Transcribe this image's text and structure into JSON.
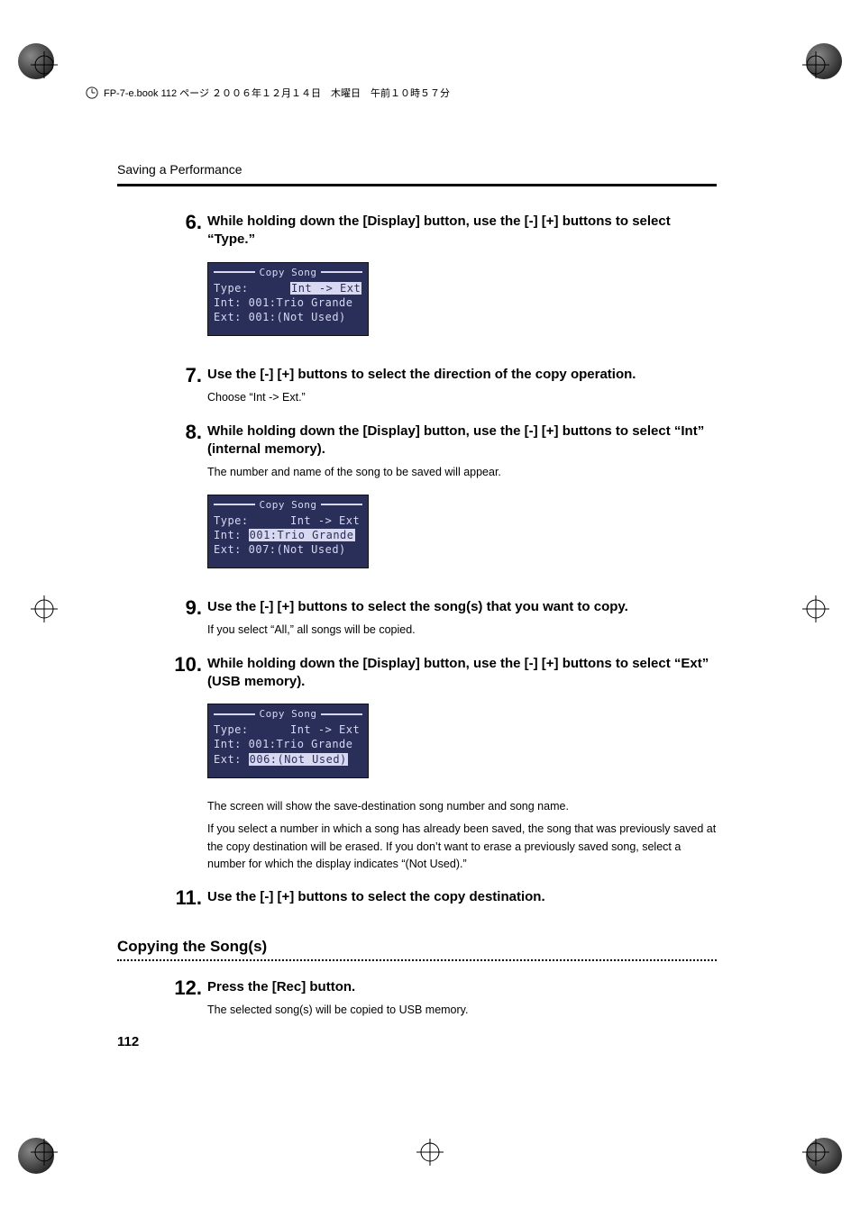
{
  "header": {
    "text": "FP-7-e.book  112 ページ  ２００６年１２月１４日　木曜日　午前１０時５７分"
  },
  "running_head": "Saving a Performance",
  "page_number": "112",
  "lcd_colors": {
    "bg": "#2a2f5a",
    "fg": "#d8d8f0"
  },
  "steps": [
    {
      "num": "6.",
      "head": "While holding down the [Display] button, use the [-] [+] buttons to select “Type.”",
      "lcd": {
        "title": "Copy Song",
        "rows": [
          {
            "left": "Type:",
            "right": "Int -> Ext",
            "sel": "right"
          },
          {
            "left": "Int: 001:Trio Grande",
            "sel": "none"
          },
          {
            "left": "Ext: 001:(Not Used)",
            "sel": "none"
          }
        ]
      }
    },
    {
      "num": "7.",
      "head": "Use the [-] [+] buttons to select the direction of the copy operation.",
      "text": [
        "Choose “Int -> Ext.”"
      ]
    },
    {
      "num": "8.",
      "head": "While holding down the [Display] button, use the [-] [+] buttons to select “Int” (internal memory).",
      "text": [
        "The number and name of the song to be saved will appear."
      ],
      "lcd": {
        "title": "Copy Song",
        "rows": [
          {
            "left": "Type:",
            "right": "Int -> Ext",
            "sel": "none"
          },
          {
            "left": "Int: ",
            "mid": "001:Trio Grande",
            "sel": "mid"
          },
          {
            "left": "Ext: 007:(Not Used)",
            "sel": "none"
          }
        ]
      }
    },
    {
      "num": "9.",
      "head": "Use the [-] [+] buttons to select the song(s) that you want to copy.",
      "text": [
        "If you select “All,” all songs will be copied."
      ]
    },
    {
      "num": "10.",
      "head": "While holding down the [Display] button, use the [-] [+] buttons to select “Ext” (USB memory).",
      "lcd": {
        "title": "Copy Song",
        "rows": [
          {
            "left": "Type:",
            "right": "Int -> Ext",
            "sel": "none"
          },
          {
            "left": "Int: 001:Trio Grande",
            "sel": "none"
          },
          {
            "left": "Ext: ",
            "mid": "006:(Not Used)",
            "sel": "mid"
          }
        ]
      },
      "text_after": [
        "The screen will show the save-destination song number and song name.",
        "If you select a number in which a song has already been saved, the song that was previously saved at the copy destination will be erased. If you don’t want to erase a previously saved song, select a number for which the display indicates “(Not Used).”"
      ]
    },
    {
      "num": "11.",
      "head": "Use the [-] [+] buttons to select the copy destination."
    }
  ],
  "section2": {
    "title": "Copying the Song(s)",
    "steps": [
      {
        "num": "12.",
        "head": "Press the [Rec] button.",
        "text": [
          "The selected song(s) will be copied to USB memory."
        ]
      }
    ]
  }
}
